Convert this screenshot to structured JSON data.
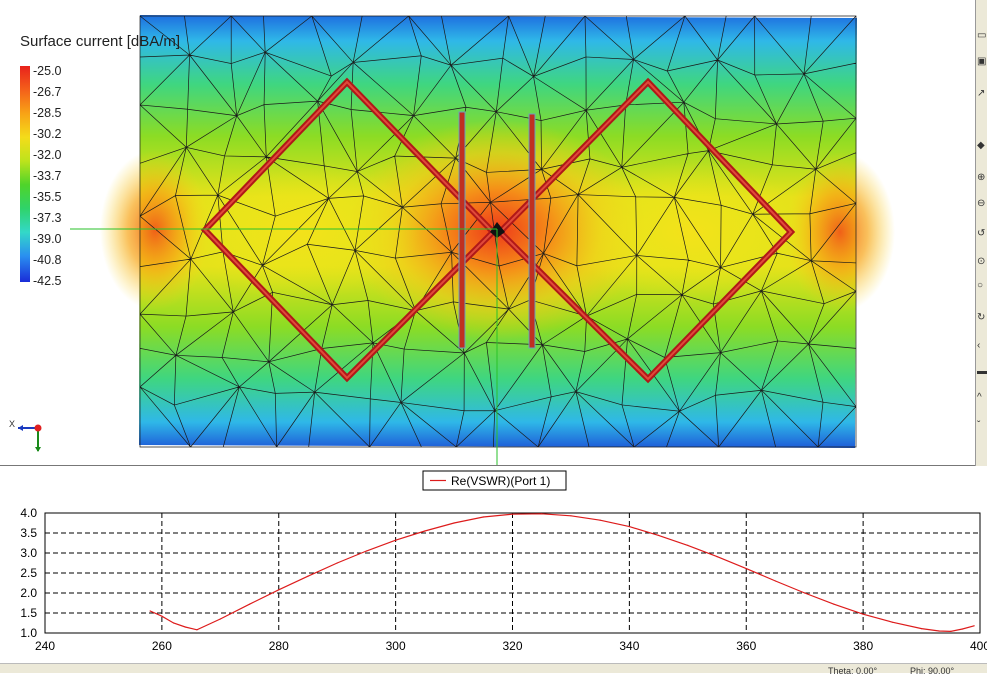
{
  "viewport": {
    "legend": {
      "title": "Surface current [dBA/m]",
      "ticks": [
        "-25.0",
        "-26.7",
        "-28.5",
        "-30.2",
        "-32.0",
        "-33.7",
        "-35.5",
        "-37.3",
        "-39.0",
        "-40.8",
        "-42.5"
      ]
    },
    "triad": {
      "x_label": "X"
    }
  },
  "right_toolbar": {
    "glyphs": [
      "▭",
      "▣",
      "↗",
      "◆",
      "⊕",
      "⊖",
      "↺",
      "⊙",
      "○",
      "↻",
      "‹",
      "▬",
      "^",
      "ˇ"
    ]
  },
  "chart_data": {
    "type": "line",
    "title": "",
    "xlabel": "",
    "ylabel": "",
    "xlim": [
      240,
      400
    ],
    "ylim": [
      1.0,
      4.0
    ],
    "xticks": [
      240,
      260,
      280,
      300,
      320,
      340,
      360,
      380,
      400
    ],
    "yticks": [
      1.0,
      1.5,
      2.0,
      2.5,
      3.0,
      3.5,
      4.0
    ],
    "grid": true,
    "legend_position": "top-center",
    "series": [
      {
        "name": "Re(VSWR)(Port 1)",
        "color": "#dd1c1c",
        "x": [
          258,
          260,
          262,
          264,
          266,
          270,
          275,
          280,
          285,
          290,
          295,
          300,
          305,
          310,
          315,
          320,
          325,
          330,
          335,
          340,
          345,
          350,
          355,
          360,
          365,
          370,
          375,
          380,
          385,
          390,
          393,
          395,
          397,
          399
        ],
        "y": [
          1.55,
          1.42,
          1.25,
          1.15,
          1.08,
          1.35,
          1.72,
          2.08,
          2.42,
          2.75,
          3.05,
          3.32,
          3.55,
          3.75,
          3.9,
          3.97,
          3.98,
          3.93,
          3.82,
          3.66,
          3.44,
          3.19,
          2.91,
          2.61,
          2.3,
          2.0,
          1.72,
          1.47,
          1.27,
          1.11,
          1.05,
          1.04,
          1.1,
          1.18
        ]
      }
    ]
  },
  "statusbar": {
    "cells": [
      "Theta: 0.00°",
      "Phi: 90.00°"
    ]
  }
}
